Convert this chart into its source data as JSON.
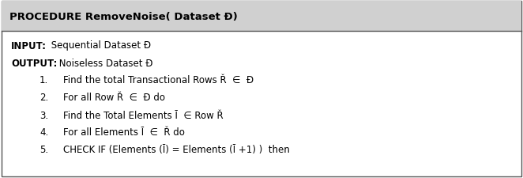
{
  "title": "PROCEDURE RemoveNoise( Dataset Đ)",
  "header_bg": "#d0d0d0",
  "body_bg": "#ffffff",
  "border_color": "#555555",
  "title_fontsize": 9.5,
  "body_fontsize": 8.5,
  "input_label": "INPUT:",
  "input_text": " Sequential Dataset Đ",
  "output_label": "OUTPUT:",
  "output_text": " Noiseless Dataset Đ",
  "steps": [
    "Find the total Transactional Rows Ř  ∈  Đ",
    "For all Row Ř  ∈  Đ do",
    "Find the Total Elements Ī  ∈ Row Ř",
    "For all Elements Ī  ∈  Ř do",
    "CHECK IF (Elements (Ī) = Elements (Ī +1) )  then"
  ],
  "figsize": [
    6.62,
    2.26
  ],
  "dpi": 100
}
